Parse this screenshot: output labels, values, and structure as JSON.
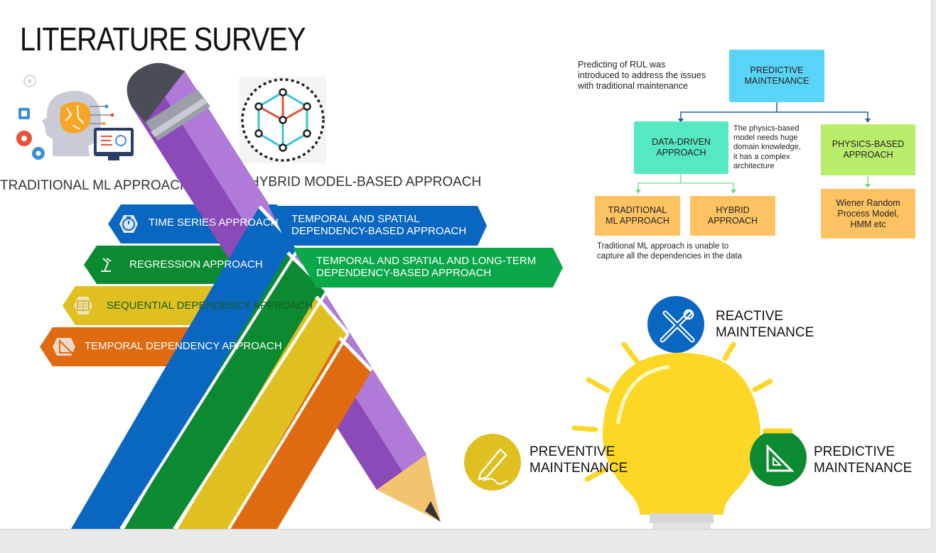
{
  "slide": {
    "title": "LITERATURE SURVEY"
  },
  "top_icons": {
    "traditional": {
      "label": "TRADITIONAL ML APPROACH",
      "icon": "ai-head-icon"
    },
    "hybrid": {
      "label": "HYBRID MODEL-BASED APPROACH",
      "icon": "network-hexagon-icon"
    }
  },
  "bands": [
    {
      "label": "TIME SERIES APPROACH",
      "color": "#0a67c1",
      "icon": "stopwatch-icon"
    },
    {
      "label": "REGRESSION APPROACH",
      "color": "#0b8a32",
      "icon": "desk-lamp-icon"
    },
    {
      "label": "SEQUENTIAL DEPENDENCY APPROACH",
      "color": "#e0c020",
      "icon": "book-icon"
    },
    {
      "label": "TEMPORAL DEPENDENCY APPROACH",
      "color": "#e06a10",
      "icon": "set-square-icon"
    }
  ],
  "right_bands": [
    {
      "label_line1": "TEMPORAL AND SPATIAL",
      "label_line2": "DEPENDENCY-BASED APPROACH",
      "color": "#0a67c1"
    },
    {
      "label_line1": "TEMPORAL AND SPATIAL AND LONG-TERM",
      "label_line2": "DEPENDENCY-BASED APPROACH",
      "color": "#0aa84a"
    }
  ],
  "flowchart": {
    "intro_note": [
      "Predicting of RUL was",
      "introduced to address the  issues",
      "with traditional maintenance"
    ],
    "root": [
      "PREDICTIVE",
      "MAINTENANCE"
    ],
    "data_driven": [
      "DATA-DRIVEN",
      "APPROACH"
    ],
    "physics_note": [
      "The  physics-based",
      "model needs huge",
      "domain knowledge,",
      "it  has  a  complex",
      "architecture"
    ],
    "physics_based": [
      "PHYSICS-BASED",
      "APPROACH"
    ],
    "traditional_ml": [
      "TRADITIONAL",
      "ML APPROACH"
    ],
    "hybrid": [
      "HYBRID",
      "APPROACH"
    ],
    "wiener": [
      "Wiener Random",
      "Process Model,",
      "HMM etc"
    ],
    "traditional_note": [
      "Traditional ML approach is unable to",
      "capture all the dependencies in the data"
    ],
    "colors": {
      "root": "#5ad3f8",
      "data_driven": "#56e8c0",
      "physics": "#b8ec6a",
      "leaf": "#fdc262",
      "arrow_blue": "#1f5fa8",
      "arrow_green": "#6ddc84"
    }
  },
  "bulb": {
    "reactive": [
      "REACTIVE",
      "MAINTENANCE"
    ],
    "preventive": [
      "PREVENTIVE",
      "MAINTENANCE"
    ],
    "predictive": [
      "PREDICTIVE",
      "MAINTENANCE"
    ],
    "colors": {
      "bulb": "#fcd725",
      "reactive_circle": "#0a67c1",
      "preventive_circle": "#e0c020",
      "predictive_circle": "#0b8a32"
    }
  }
}
